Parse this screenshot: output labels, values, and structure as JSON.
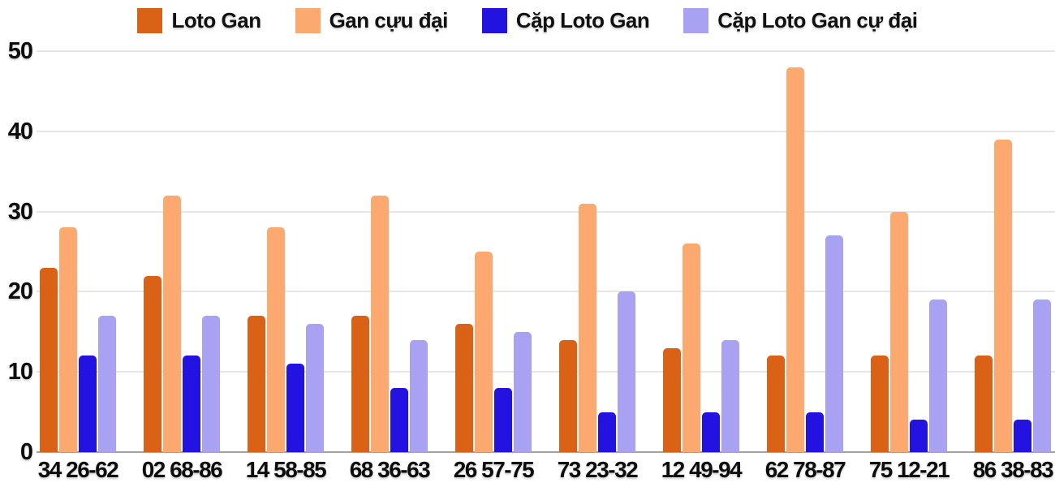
{
  "chart_data": {
    "type": "bar",
    "title": "",
    "xlabel": "",
    "ylabel": "",
    "categories": [
      "34 26-62",
      "02 68-86",
      "14 58-85",
      "68 36-63",
      "26 57-75",
      "73 23-32",
      "12 49-94",
      "62 78-87",
      "75 12-21",
      "86 38-83"
    ],
    "series": [
      {
        "name": "Loto Gan",
        "color": "#d96217",
        "values": [
          23,
          22,
          17,
          17,
          16,
          14,
          13,
          12,
          12,
          12
        ]
      },
      {
        "name": "Gan cựu đại",
        "color": "#fba96e",
        "values": [
          28,
          32,
          28,
          32,
          25,
          31,
          26,
          48,
          30,
          39
        ]
      },
      {
        "name": "Cặp Loto Gan",
        "color": "#2213e0",
        "values": [
          12,
          12,
          11,
          8,
          8,
          5,
          5,
          5,
          4,
          4
        ]
      },
      {
        "name": "Cặp Loto Gan cự đại",
        "color": "#a9a2f2",
        "values": [
          17,
          17,
          16,
          14,
          15,
          20,
          14,
          27,
          19,
          19
        ]
      }
    ],
    "ylim": [
      0,
      50
    ],
    "yticks": [
      0,
      10,
      20,
      30,
      40,
      50
    ],
    "grid": true,
    "legend_position": "top",
    "colors": {
      "gridline": "#e6e6e6",
      "axis_line": "#a3a3a3",
      "text": "#0d0d0d",
      "background": "#ffffff"
    }
  }
}
